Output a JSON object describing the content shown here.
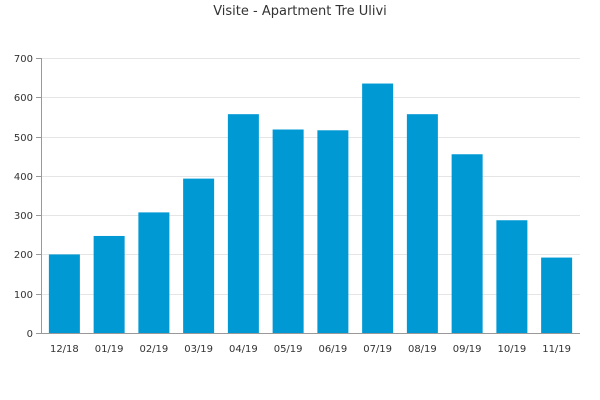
{
  "chart_data": {
    "type": "bar",
    "title": "Visite - Apartment Tre Ulivi",
    "xlabel": "",
    "ylabel": "",
    "categories": [
      "12/18",
      "01/19",
      "02/19",
      "03/19",
      "04/19",
      "05/19",
      "06/19",
      "07/19",
      "08/19",
      "09/19",
      "10/19",
      "11/19"
    ],
    "values": [
      200,
      247,
      307,
      393,
      557,
      518,
      516,
      635,
      557,
      455,
      287,
      192
    ],
    "ylim": [
      0,
      700
    ],
    "yticks": [
      0,
      100,
      200,
      300,
      400,
      500,
      600,
      700
    ],
    "grid": true,
    "legend": "none",
    "bar_color": "#0099d4",
    "grid_color": "#e5e5e5",
    "axis_color": "#999999"
  }
}
